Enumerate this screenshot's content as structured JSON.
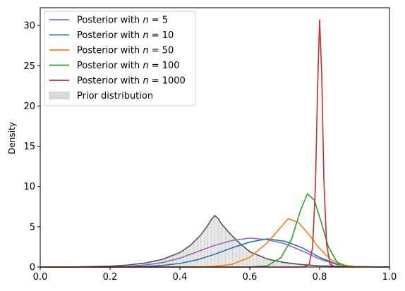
{
  "chart_data": {
    "type": "line",
    "title": "",
    "xlabel": "",
    "ylabel": "Density",
    "xlim": [
      0.0,
      1.0
    ],
    "ylim": [
      0,
      32.2
    ],
    "xticks": [
      0.0,
      0.2,
      0.4,
      0.6,
      0.8,
      1.0
    ],
    "xtick_labels": [
      "0.0",
      "0.2",
      "0.4",
      "0.6",
      "0.8",
      "1.0"
    ],
    "yticks": [
      0,
      5,
      10,
      15,
      20,
      25,
      30
    ],
    "ytick_labels": [
      "0",
      "5",
      "10",
      "15",
      "20",
      "25",
      "30"
    ],
    "grid": false,
    "legend_placement": "top-left",
    "series": [
      {
        "name": "Posterior with n = 5",
        "legend_prefix": "Posterior with ",
        "legend_n": "n",
        "legend_eq": " = 5",
        "color": "#9467bd",
        "x": [
          0.0,
          0.1,
          0.2,
          0.25,
          0.3,
          0.35,
          0.4,
          0.45,
          0.5,
          0.55,
          0.6,
          0.65,
          0.7,
          0.75,
          0.8,
          0.85,
          0.9,
          1.0
        ],
        "y": [
          0,
          0.0,
          0.02,
          0.08,
          0.25,
          0.55,
          1.1,
          1.9,
          2.7,
          3.3,
          3.6,
          3.4,
          2.9,
          2.0,
          1.0,
          0.3,
          0.05,
          0
        ]
      },
      {
        "name": "Posterior with n = 10",
        "legend_prefix": "Posterior with ",
        "legend_n": "n",
        "legend_eq": " = 10",
        "color": "#1f77b4",
        "x": [
          0.0,
          0.25,
          0.3,
          0.35,
          0.4,
          0.45,
          0.5,
          0.55,
          0.6,
          0.65,
          0.7,
          0.75,
          0.8,
          0.85,
          0.9,
          1.0
        ],
        "y": [
          0,
          0.02,
          0.07,
          0.2,
          0.45,
          0.9,
          1.6,
          2.4,
          3.1,
          3.5,
          3.2,
          2.4,
          1.2,
          0.35,
          0.05,
          0
        ]
      },
      {
        "name": "Posterior with n = 50",
        "legend_prefix": "Posterior with ",
        "legend_n": "n",
        "legend_eq": " = 50",
        "color": "#ff7f0e",
        "x": [
          0.0,
          0.45,
          0.5,
          0.55,
          0.6,
          0.65,
          0.68,
          0.71,
          0.74,
          0.77,
          0.8,
          0.83,
          0.86,
          0.9,
          1.0
        ],
        "y": [
          0,
          0.0,
          0.08,
          0.35,
          1.2,
          3.0,
          4.5,
          6.0,
          5.5,
          4.0,
          2.3,
          1.0,
          0.3,
          0.05,
          0
        ]
      },
      {
        "name": "Posterior with n = 100",
        "legend_prefix": "Posterior with ",
        "legend_n": "n",
        "legend_eq": " = 100",
        "color": "#2ca02c",
        "x": [
          0.0,
          0.6,
          0.65,
          0.69,
          0.72,
          0.745,
          0.765,
          0.785,
          0.805,
          0.825,
          0.85,
          0.88,
          1.0
        ],
        "y": [
          0,
          0.0,
          0.15,
          1.2,
          3.5,
          7.0,
          9.1,
          8.3,
          5.5,
          2.5,
          0.6,
          0.05,
          0
        ]
      },
      {
        "name": "Posterior with n = 1000",
        "legend_prefix": "Posterior with ",
        "legend_n": "n",
        "legend_eq": " = 1000",
        "color": "#d62728",
        "x": [
          0.0,
          0.755,
          0.77,
          0.78,
          0.788,
          0.794,
          0.8,
          0.806,
          0.812,
          0.82,
          0.83,
          0.845,
          1.0
        ],
        "y": [
          0,
          0.0,
          0.3,
          2.5,
          10.0,
          22.0,
          30.7,
          24.0,
          11.0,
          2.8,
          0.35,
          0.0,
          0
        ]
      }
    ],
    "prior": {
      "name": "Prior distribution",
      "curve_color": "#555555",
      "fill_color": "#d9d9d9",
      "x": [
        0.0,
        0.1,
        0.2,
        0.25,
        0.3,
        0.35,
        0.4,
        0.43,
        0.46,
        0.48,
        0.49,
        0.5,
        0.51,
        0.52,
        0.54,
        0.57,
        0.6,
        0.65,
        0.7,
        0.75,
        0.8,
        0.9,
        1.0
      ],
      "y": [
        0,
        0.02,
        0.12,
        0.25,
        0.5,
        0.95,
        1.8,
        2.7,
        4.0,
        5.2,
        5.9,
        6.4,
        6.0,
        5.3,
        4.3,
        3.0,
        1.9,
        1.0,
        0.55,
        0.3,
        0.15,
        0.04,
        0
      ]
    }
  }
}
